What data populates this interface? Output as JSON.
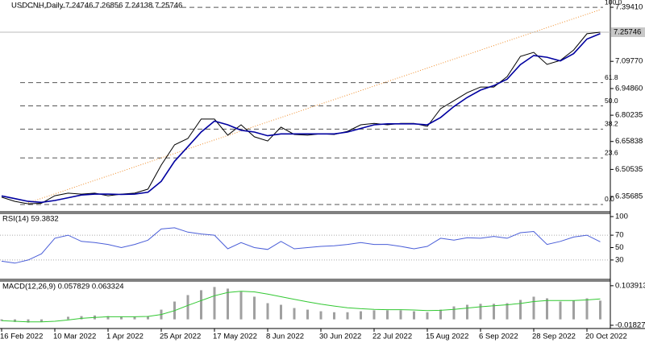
{
  "chart_data": [
    {
      "type": "line",
      "title": "USDCNH,Daily  7.24746 7.26856 7.24138 7.25746",
      "series": [
        {
          "color": "#000000",
          "values": [
            6.353,
            6.33,
            6.317,
            6.32,
            6.361,
            6.375,
            6.37,
            6.375,
            6.361,
            6.37,
            6.375,
            6.397,
            6.529,
            6.64,
            6.675,
            6.781,
            6.781,
            6.693,
            6.75,
            6.684,
            6.661,
            6.737,
            6.697,
            6.693,
            6.701,
            6.697,
            6.714,
            6.75,
            6.758,
            6.75,
            6.758,
            6.758,
            6.741,
            6.838,
            6.882,
            6.926,
            6.957,
            6.957,
            7.014,
            7.125,
            7.147,
            7.081,
            7.103,
            7.16,
            7.249,
            7.25746
          ]
        },
        {
          "color": "#0000a0",
          "values": [
            6.36,
            6.345,
            6.33,
            6.325,
            6.335,
            6.35,
            6.365,
            6.37,
            6.37,
            6.368,
            6.37,
            6.38,
            6.44,
            6.55,
            6.63,
            6.71,
            6.77,
            6.75,
            6.72,
            6.71,
            6.69,
            6.7,
            6.7,
            6.7,
            6.7,
            6.7,
            6.71,
            6.73,
            6.75,
            6.755,
            6.755,
            6.755,
            6.75,
            6.79,
            6.85,
            6.9,
            6.94,
            6.965,
            7.0,
            7.08,
            7.13,
            7.12,
            7.1,
            7.14,
            7.22,
            7.25
          ]
        }
      ],
      "ylim": [
        6.2776,
        7.434
      ],
      "yticks": [
        {
          "value": 7.3941,
          "label": "7.39410"
        },
        {
          "value": 7.0977,
          "label": "7.09770"
        },
        {
          "value": 6.9486,
          "label": "6.94860"
        },
        6.80235,
        6.65838,
        6.50535,
        6.35685
      ],
      "last_price": 7.25746,
      "fibonacci": {
        "range": [
          6.313,
          7.394
        ],
        "color": "#555555",
        "levels": [
          {
            "value": 100,
            "label": "100.0"
          },
          61.8,
          {
            "value": 50,
            "label": "50.0"
          },
          38.2,
          23.6,
          {
            "value": 0,
            "label": "0.0"
          }
        ]
      },
      "trendline": {
        "x": [
          2,
          45
        ],
        "values": [
          6.322,
          7.381
        ],
        "color": "#f08c28"
      }
    },
    {
      "type": "line",
      "title": "RSI(14) 59.3832",
      "series": [
        {
          "color": "#4a5ed8",
          "values": [
            28,
            25,
            30,
            40,
            65,
            70,
            60,
            58,
            55,
            50,
            55,
            62,
            80,
            82,
            75,
            72,
            70,
            48,
            58,
            50,
            47,
            60,
            48,
            50,
            52,
            53,
            55,
            58,
            55,
            55,
            52,
            48,
            52,
            65,
            62,
            66,
            65,
            68,
            65,
            74,
            76,
            55,
            60,
            67,
            70,
            59.3832
          ]
        }
      ],
      "ylim": [
        0,
        100
      ],
      "yticks": [
        30,
        50,
        70,
        100
      ],
      "levels": [
        30,
        70
      ]
    },
    {
      "type": "bar",
      "title": "MACD(12,26,9) 0.057829 0.063324",
      "categories": [
        "16 Feb 2022",
        null,
        null,
        null,
        "10 Mar 2022",
        null,
        null,
        null,
        "1 Apr 2022",
        null,
        null,
        null,
        "25 Apr 2022",
        null,
        null,
        null,
        "17 May 2022",
        null,
        null,
        null,
        "8 Jun 2022",
        null,
        null,
        null,
        "30 Jun 2022",
        null,
        null,
        null,
        "22 Jul 2022",
        null,
        null,
        null,
        "15 Aug 2022",
        null,
        null,
        null,
        "6 Sep 2022",
        null,
        null,
        null,
        "28 Sep 2022",
        null,
        null,
        null,
        "20 Oct 2022",
        null
      ],
      "values": [
        -0.005,
        -0.008,
        -0.01,
        -0.008,
        0.0,
        0.008,
        0.01,
        0.012,
        0.01,
        0.008,
        0.008,
        0.01,
        0.03,
        0.055,
        0.075,
        0.09,
        0.1,
        0.095,
        0.085,
        0.07,
        0.05,
        0.045,
        0.035,
        0.03,
        0.025,
        0.022,
        0.022,
        0.025,
        0.028,
        0.028,
        0.028,
        0.025,
        0.022,
        0.03,
        0.04,
        0.045,
        0.048,
        0.048,
        0.05,
        0.06,
        0.07,
        0.065,
        0.055,
        0.058,
        0.065,
        0.057829
      ],
      "color": "#a0a0a0",
      "signal": {
        "color": "#32c832",
        "values": [
          -0.004,
          -0.006,
          -0.008,
          -0.008,
          -0.006,
          -0.002,
          0.003,
          0.006,
          0.008,
          0.008,
          0.008,
          0.009,
          0.015,
          0.027,
          0.043,
          0.058,
          0.073,
          0.083,
          0.087,
          0.085,
          0.078,
          0.07,
          0.062,
          0.054,
          0.047,
          0.041,
          0.036,
          0.033,
          0.031,
          0.03,
          0.03,
          0.029,
          0.027,
          0.028,
          0.031,
          0.035,
          0.039,
          0.042,
          0.045,
          0.049,
          0.055,
          0.058,
          0.058,
          0.058,
          0.06,
          0.063324
        ]
      },
      "ylim": [
        -0.0258,
        0.116
      ],
      "yticks": [
        0.103913,
        -0.018277
      ]
    }
  ]
}
